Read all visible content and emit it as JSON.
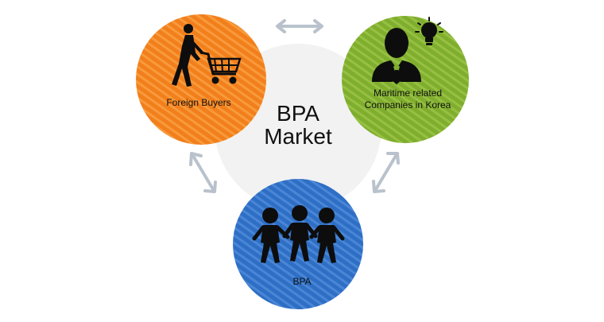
{
  "center": {
    "line1": "BPA",
    "line2": "Market"
  },
  "nodes": {
    "foreign_buyers": {
      "label": "Foreign Buyers",
      "color": "#F27F1B"
    },
    "maritime": {
      "line1": "Maritime related",
      "line2": "Companies in Korea",
      "color": "#7FAE2E"
    },
    "bpa": {
      "label": "BPA",
      "color": "#2E6FC5"
    }
  },
  "colors": {
    "center_circle": "#F2F2F2",
    "arrow": "#B9C2CC",
    "icon": "#0D0D0D"
  },
  "icons": {
    "foreign_buyers": "shopping-cart-person-icon",
    "maritime": "businessman-lightbulb-icon",
    "bpa": "people-group-icon"
  }
}
